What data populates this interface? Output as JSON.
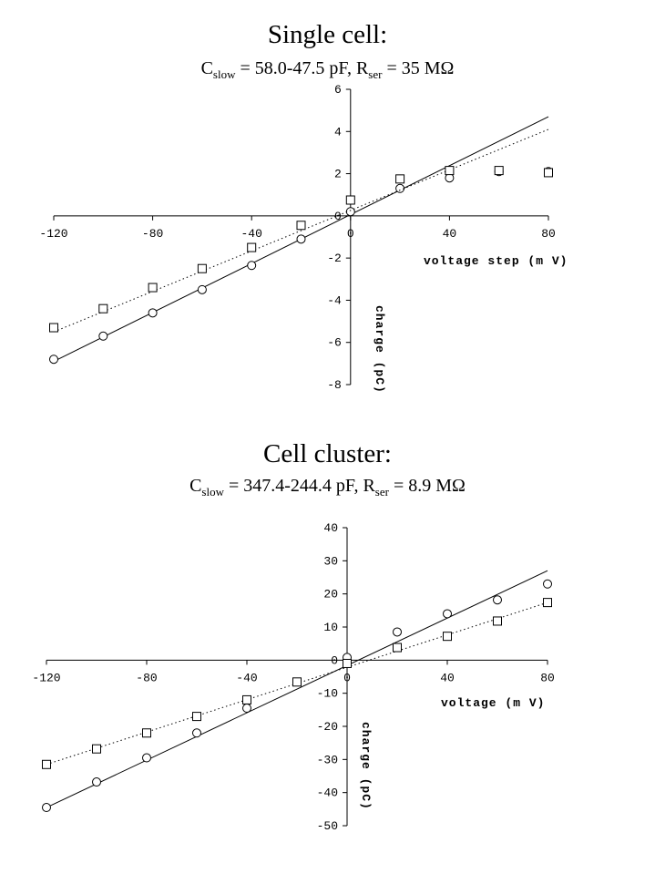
{
  "chart_data": [
    {
      "type": "scatter",
      "title": "Single cell:",
      "subtitle": {
        "c_symbol": "C",
        "c_sub": "slow",
        "c_value": " = 58.0-47.5 pF, ",
        "r_symbol": "R",
        "r_sub": "ser",
        "r_value": " = 35 MΩ"
      },
      "xlabel": "voltage step (m V)",
      "ylabel": "charge (pC)",
      "xlim": [
        -120,
        80
      ],
      "ylim": [
        -8,
        6
      ],
      "xticks": [
        -120,
        -80,
        -40,
        0,
        40,
        80
      ],
      "yticks": [
        -8,
        -6,
        -4,
        -2,
        0,
        2,
        4,
        6
      ],
      "grid": false,
      "series": [
        {
          "marker": "circle",
          "x": [
            -120,
            -100,
            -80,
            -60,
            -40,
            -20,
            0,
            20,
            40,
            60,
            80
          ],
          "y": [
            -6.8,
            -5.7,
            -4.6,
            -3.5,
            -2.35,
            -1.1,
            0.2,
            1.3,
            1.8,
            2.1,
            2.1
          ],
          "fit": {
            "style": "solid",
            "x": [
              -120,
              80
            ],
            "y": [
              -6.9,
              4.7
            ]
          }
        },
        {
          "marker": "square",
          "x": [
            -120,
            -100,
            -80,
            -60,
            -40,
            -20,
            0,
            20,
            40,
            60,
            80
          ],
          "y": [
            -5.3,
            -4.4,
            -3.4,
            -2.5,
            -1.5,
            -0.45,
            0.75,
            1.75,
            2.15,
            2.15,
            2.05
          ],
          "fit": {
            "style": "dotted",
            "x": [
              -120,
              80
            ],
            "y": [
              -5.5,
              4.1
            ]
          }
        }
      ]
    },
    {
      "type": "scatter",
      "title": "Cell cluster:",
      "subtitle": {
        "c_symbol": "C",
        "c_sub": "slow",
        "c_value": " = 347.4-244.4 pF, ",
        "r_symbol": "R",
        "r_sub": "ser",
        "r_value": " = 8.9 MΩ"
      },
      "xlabel": "voltage (m V)",
      "ylabel": "charge (pC)",
      "xlim": [
        -120,
        80
      ],
      "ylim": [
        -50,
        40
      ],
      "xticks": [
        -120,
        -80,
        -40,
        0,
        40,
        80
      ],
      "yticks": [
        -50,
        -40,
        -30,
        -20,
        -10,
        0,
        10,
        20,
        30,
        40
      ],
      "grid": false,
      "series": [
        {
          "marker": "circle",
          "x": [
            -120,
            -100,
            -80,
            -60,
            -40,
            0,
            20,
            40,
            60,
            80
          ],
          "y": [
            -44.5,
            -36.8,
            -29.5,
            -22,
            -14.5,
            0.8,
            8.5,
            14,
            18.2,
            23
          ],
          "fit": {
            "style": "solid",
            "x": [
              -120,
              80
            ],
            "y": [
              -44.5,
              27
            ]
          }
        },
        {
          "marker": "square",
          "x": [
            -120,
            -100,
            -80,
            -60,
            -40,
            -20,
            0,
            20,
            40,
            60,
            80
          ],
          "y": [
            -31.5,
            -26.8,
            -22,
            -17,
            -12,
            -6.6,
            -1,
            3.8,
            7.2,
            11.8,
            17.4
          ],
          "fit": {
            "style": "dotted",
            "x": [
              -120,
              80
            ],
            "y": [
              -31.5,
              17.4
            ]
          }
        }
      ]
    }
  ]
}
